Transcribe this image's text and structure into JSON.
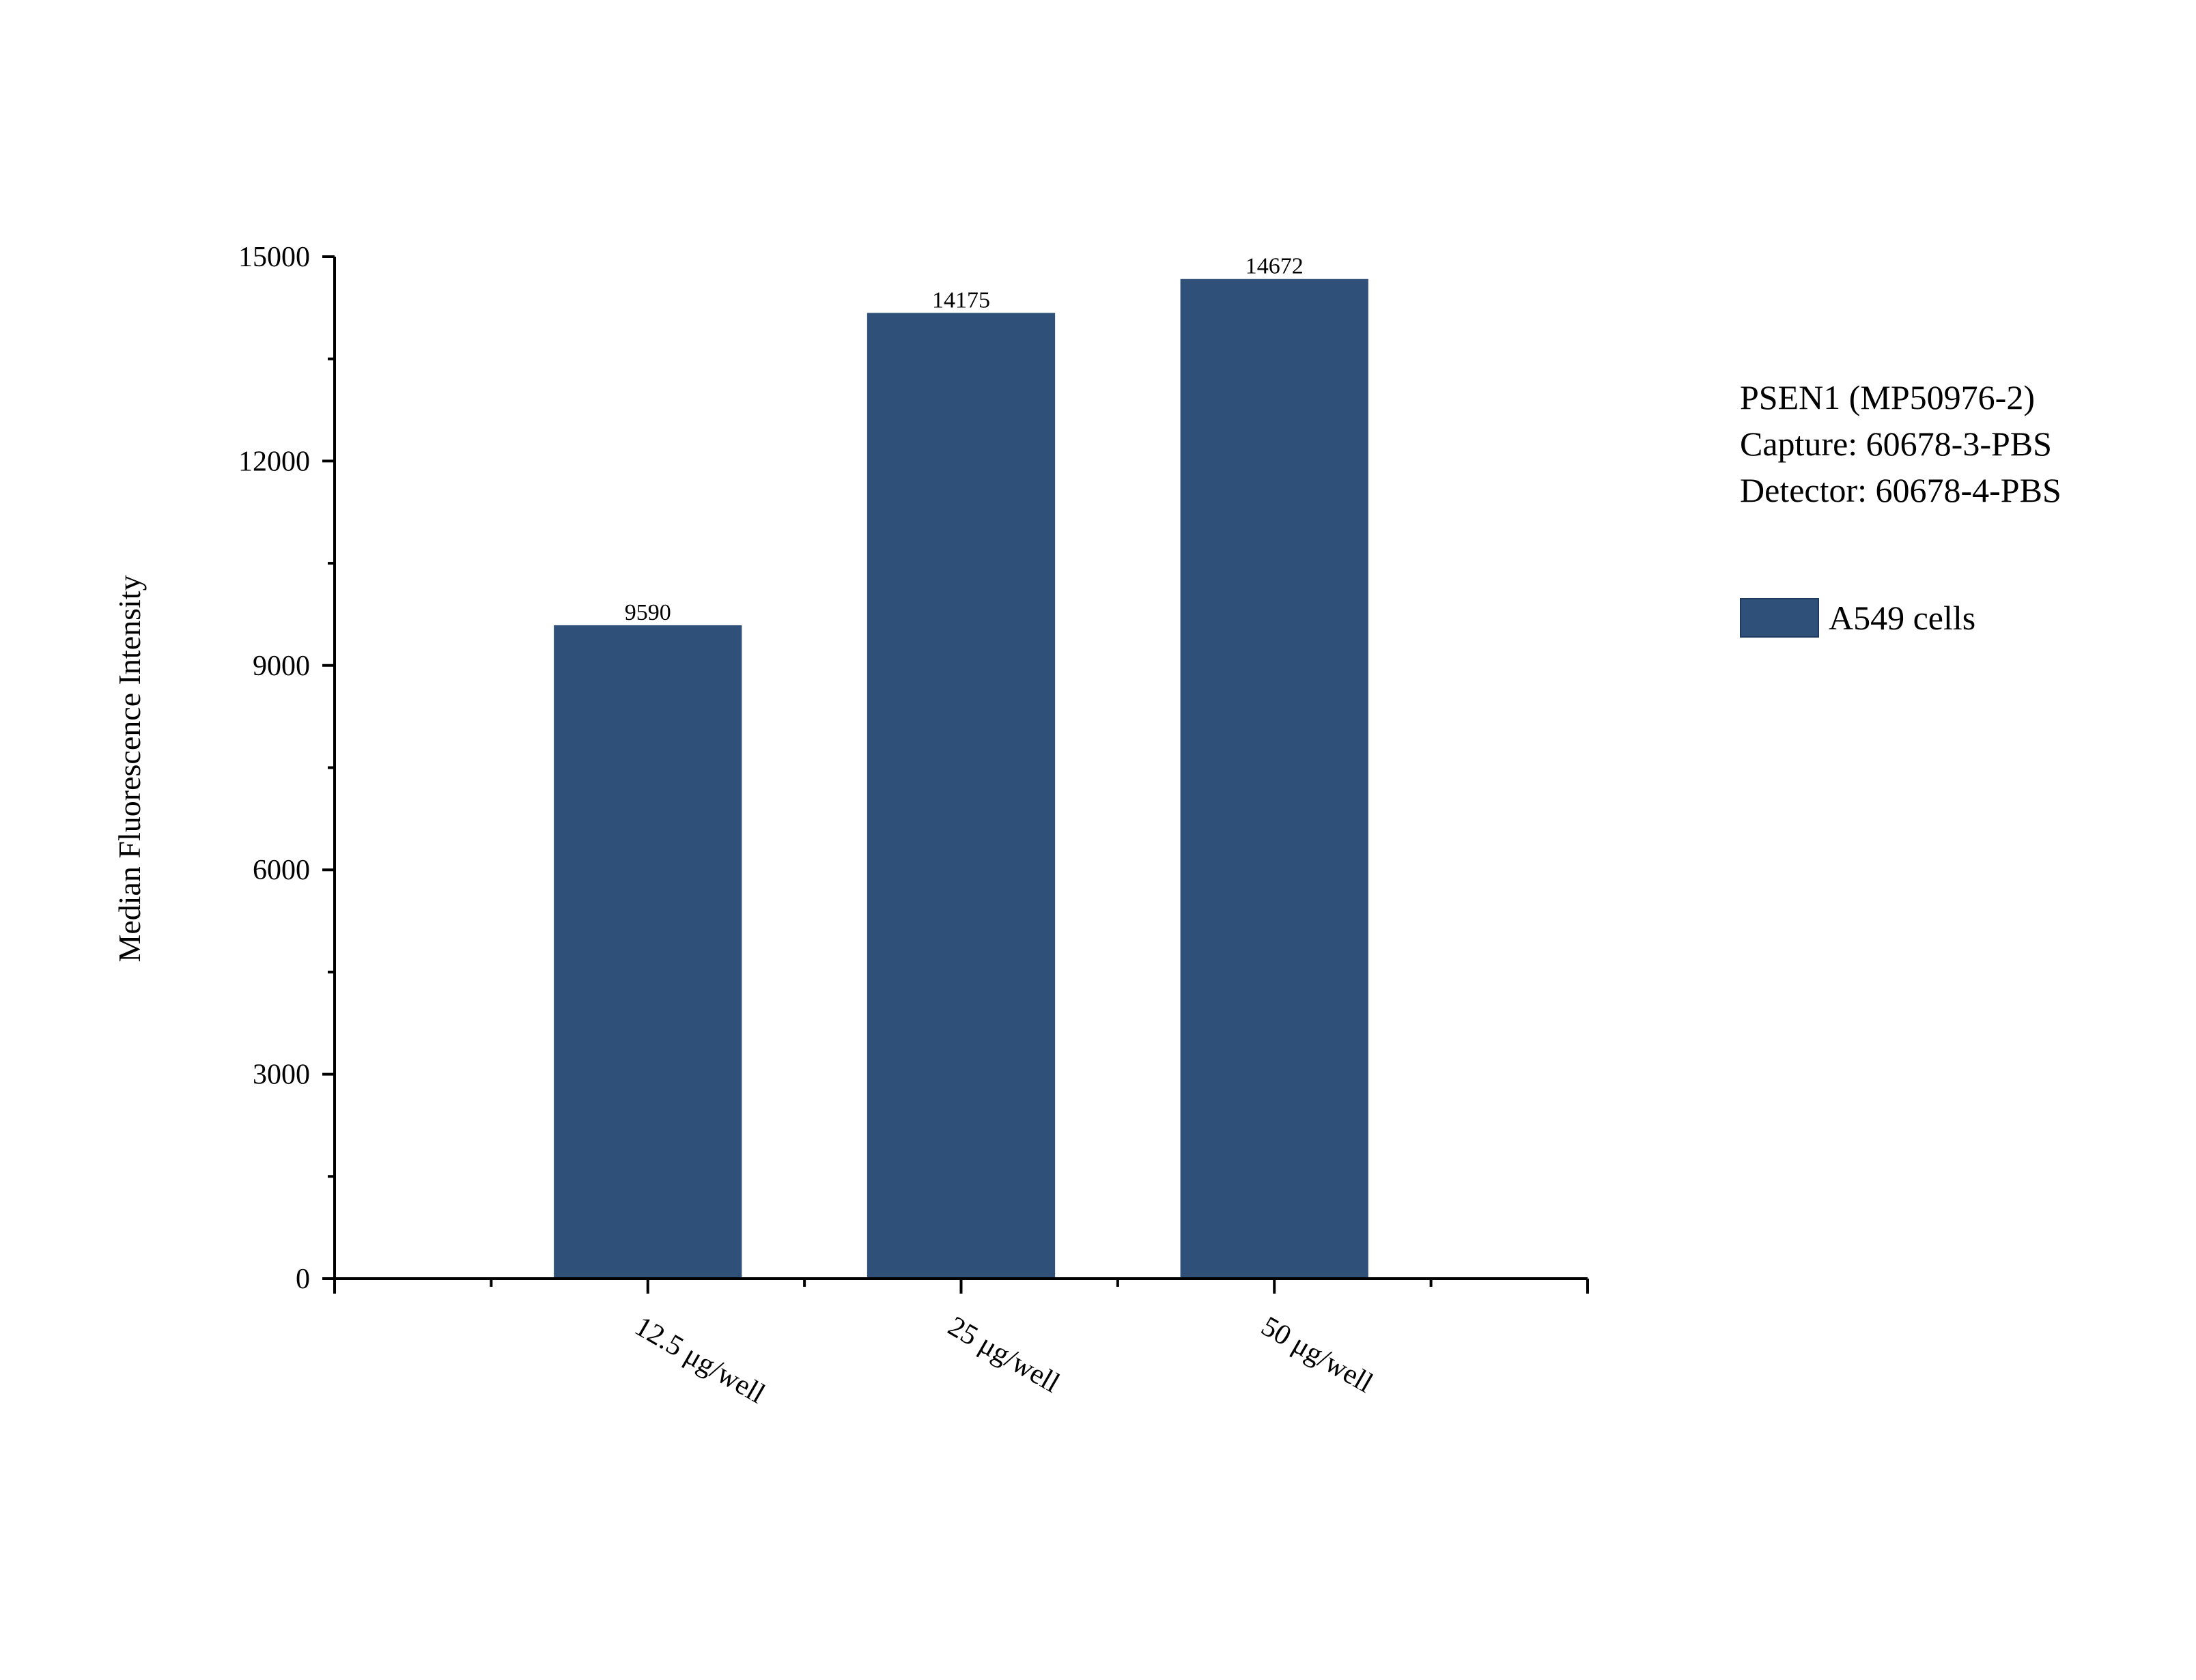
{
  "chart_data": {
    "type": "bar",
    "categories": [
      "12.5 μg/well",
      "25 μg/well",
      "50 μg/well"
    ],
    "series": [
      {
        "name": "A549 cells",
        "values": [
          9590,
          14175,
          14672
        ],
        "color": "#2f5078"
      }
    ],
    "data_labels": [
      "9590",
      "14175",
      "14672"
    ],
    "ylabel": "Median Fluorescence Intensity",
    "xlabel": "",
    "ylim": [
      0,
      15000
    ],
    "yticks": [
      0,
      3000,
      6000,
      9000,
      12000,
      15000
    ],
    "ytick_labels": [
      "0",
      "3000",
      "6000",
      "9000",
      "12000",
      "15000"
    ],
    "grid": false,
    "legend_position": "right"
  },
  "annotation": {
    "lines": [
      "PSEN1 (MP50976-2)",
      "Capture: 60678-3-PBS",
      "Detector: 60678-4-PBS"
    ]
  },
  "legend": {
    "label": "A549 cells",
    "color": "#2f5078"
  }
}
